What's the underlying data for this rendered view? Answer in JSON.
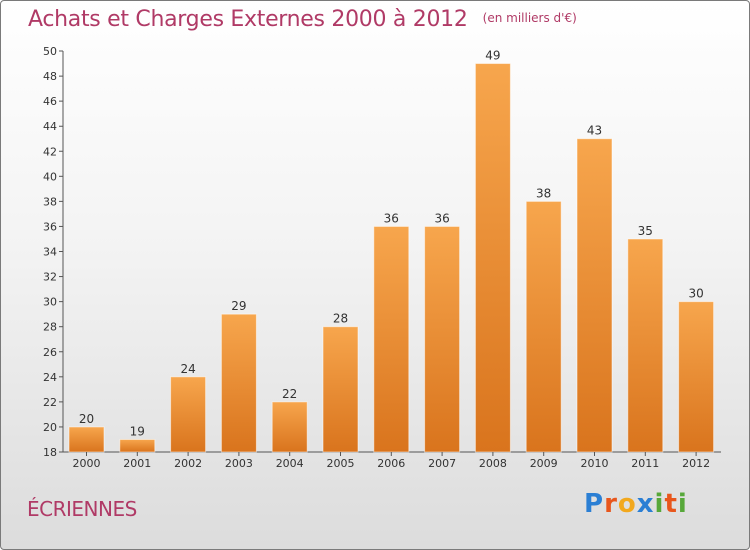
{
  "header": {
    "title": "Achats et Charges Externes 2000 à 2012",
    "unit_note": "(en milliers d'€)"
  },
  "place": "ÉCRIENNES",
  "logo": {
    "text": "Proxiti",
    "letters": [
      {
        "ch": "P",
        "color": "#2b7fd4"
      },
      {
        "ch": "r",
        "color": "#e8561c"
      },
      {
        "ch": "o",
        "color": "#f2a81d"
      },
      {
        "ch": "x",
        "color": "#2b7fd4"
      },
      {
        "ch": "i",
        "color": "#57a83a"
      },
      {
        "ch": "t",
        "color": "#e8561c"
      },
      {
        "ch": "i",
        "color": "#57a83a"
      }
    ]
  },
  "colors": {
    "bar_light": "#f7a64d",
    "bar_dark": "#d9741d",
    "accent_text": "#b03a66"
  },
  "chart_data": {
    "type": "bar",
    "title": "Achats et Charges Externes 2000 à 2012",
    "subtitle": "(en milliers d'€)",
    "categories": [
      "2000",
      "2001",
      "2002",
      "2003",
      "2004",
      "2005",
      "2006",
      "2007",
      "2008",
      "2009",
      "2010",
      "2011",
      "2012"
    ],
    "values": [
      20,
      19,
      24,
      29,
      22,
      28,
      36,
      36,
      49,
      38,
      43,
      35,
      30
    ],
    "ylim": [
      18,
      50
    ],
    "yticks": [
      18,
      20,
      22,
      24,
      26,
      28,
      30,
      32,
      34,
      36,
      38,
      40,
      42,
      44,
      46,
      48,
      50
    ],
    "grid": false,
    "data_labels": true
  }
}
